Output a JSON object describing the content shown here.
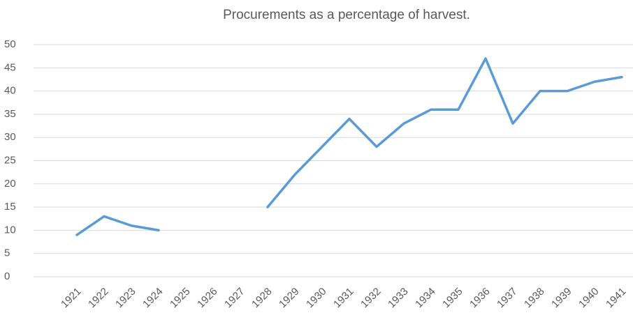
{
  "chart_data": {
    "type": "line",
    "title": "Procurements as a percentage of harvest.",
    "categories": [
      "1921",
      "1922",
      "1923",
      "1924",
      "1925",
      "1926",
      "1927",
      "1928",
      "1929",
      "1930",
      "1931",
      "1932",
      "1933",
      "1934",
      "1935",
      "1936",
      "1937",
      "1938",
      "1939",
      "1940",
      "1941"
    ],
    "series": [
      {
        "name": "Procurements",
        "color": "#5b9bd5",
        "values": [
          9,
          13,
          11,
          10,
          null,
          null,
          null,
          15,
          22,
          28,
          34,
          28,
          33,
          36,
          36,
          47,
          33,
          40,
          40,
          42,
          43
        ]
      }
    ],
    "ylim": [
      0,
      50
    ],
    "yticks": [
      0,
      5,
      10,
      15,
      20,
      25,
      30,
      35,
      40,
      45,
      50
    ],
    "grid": true
  }
}
